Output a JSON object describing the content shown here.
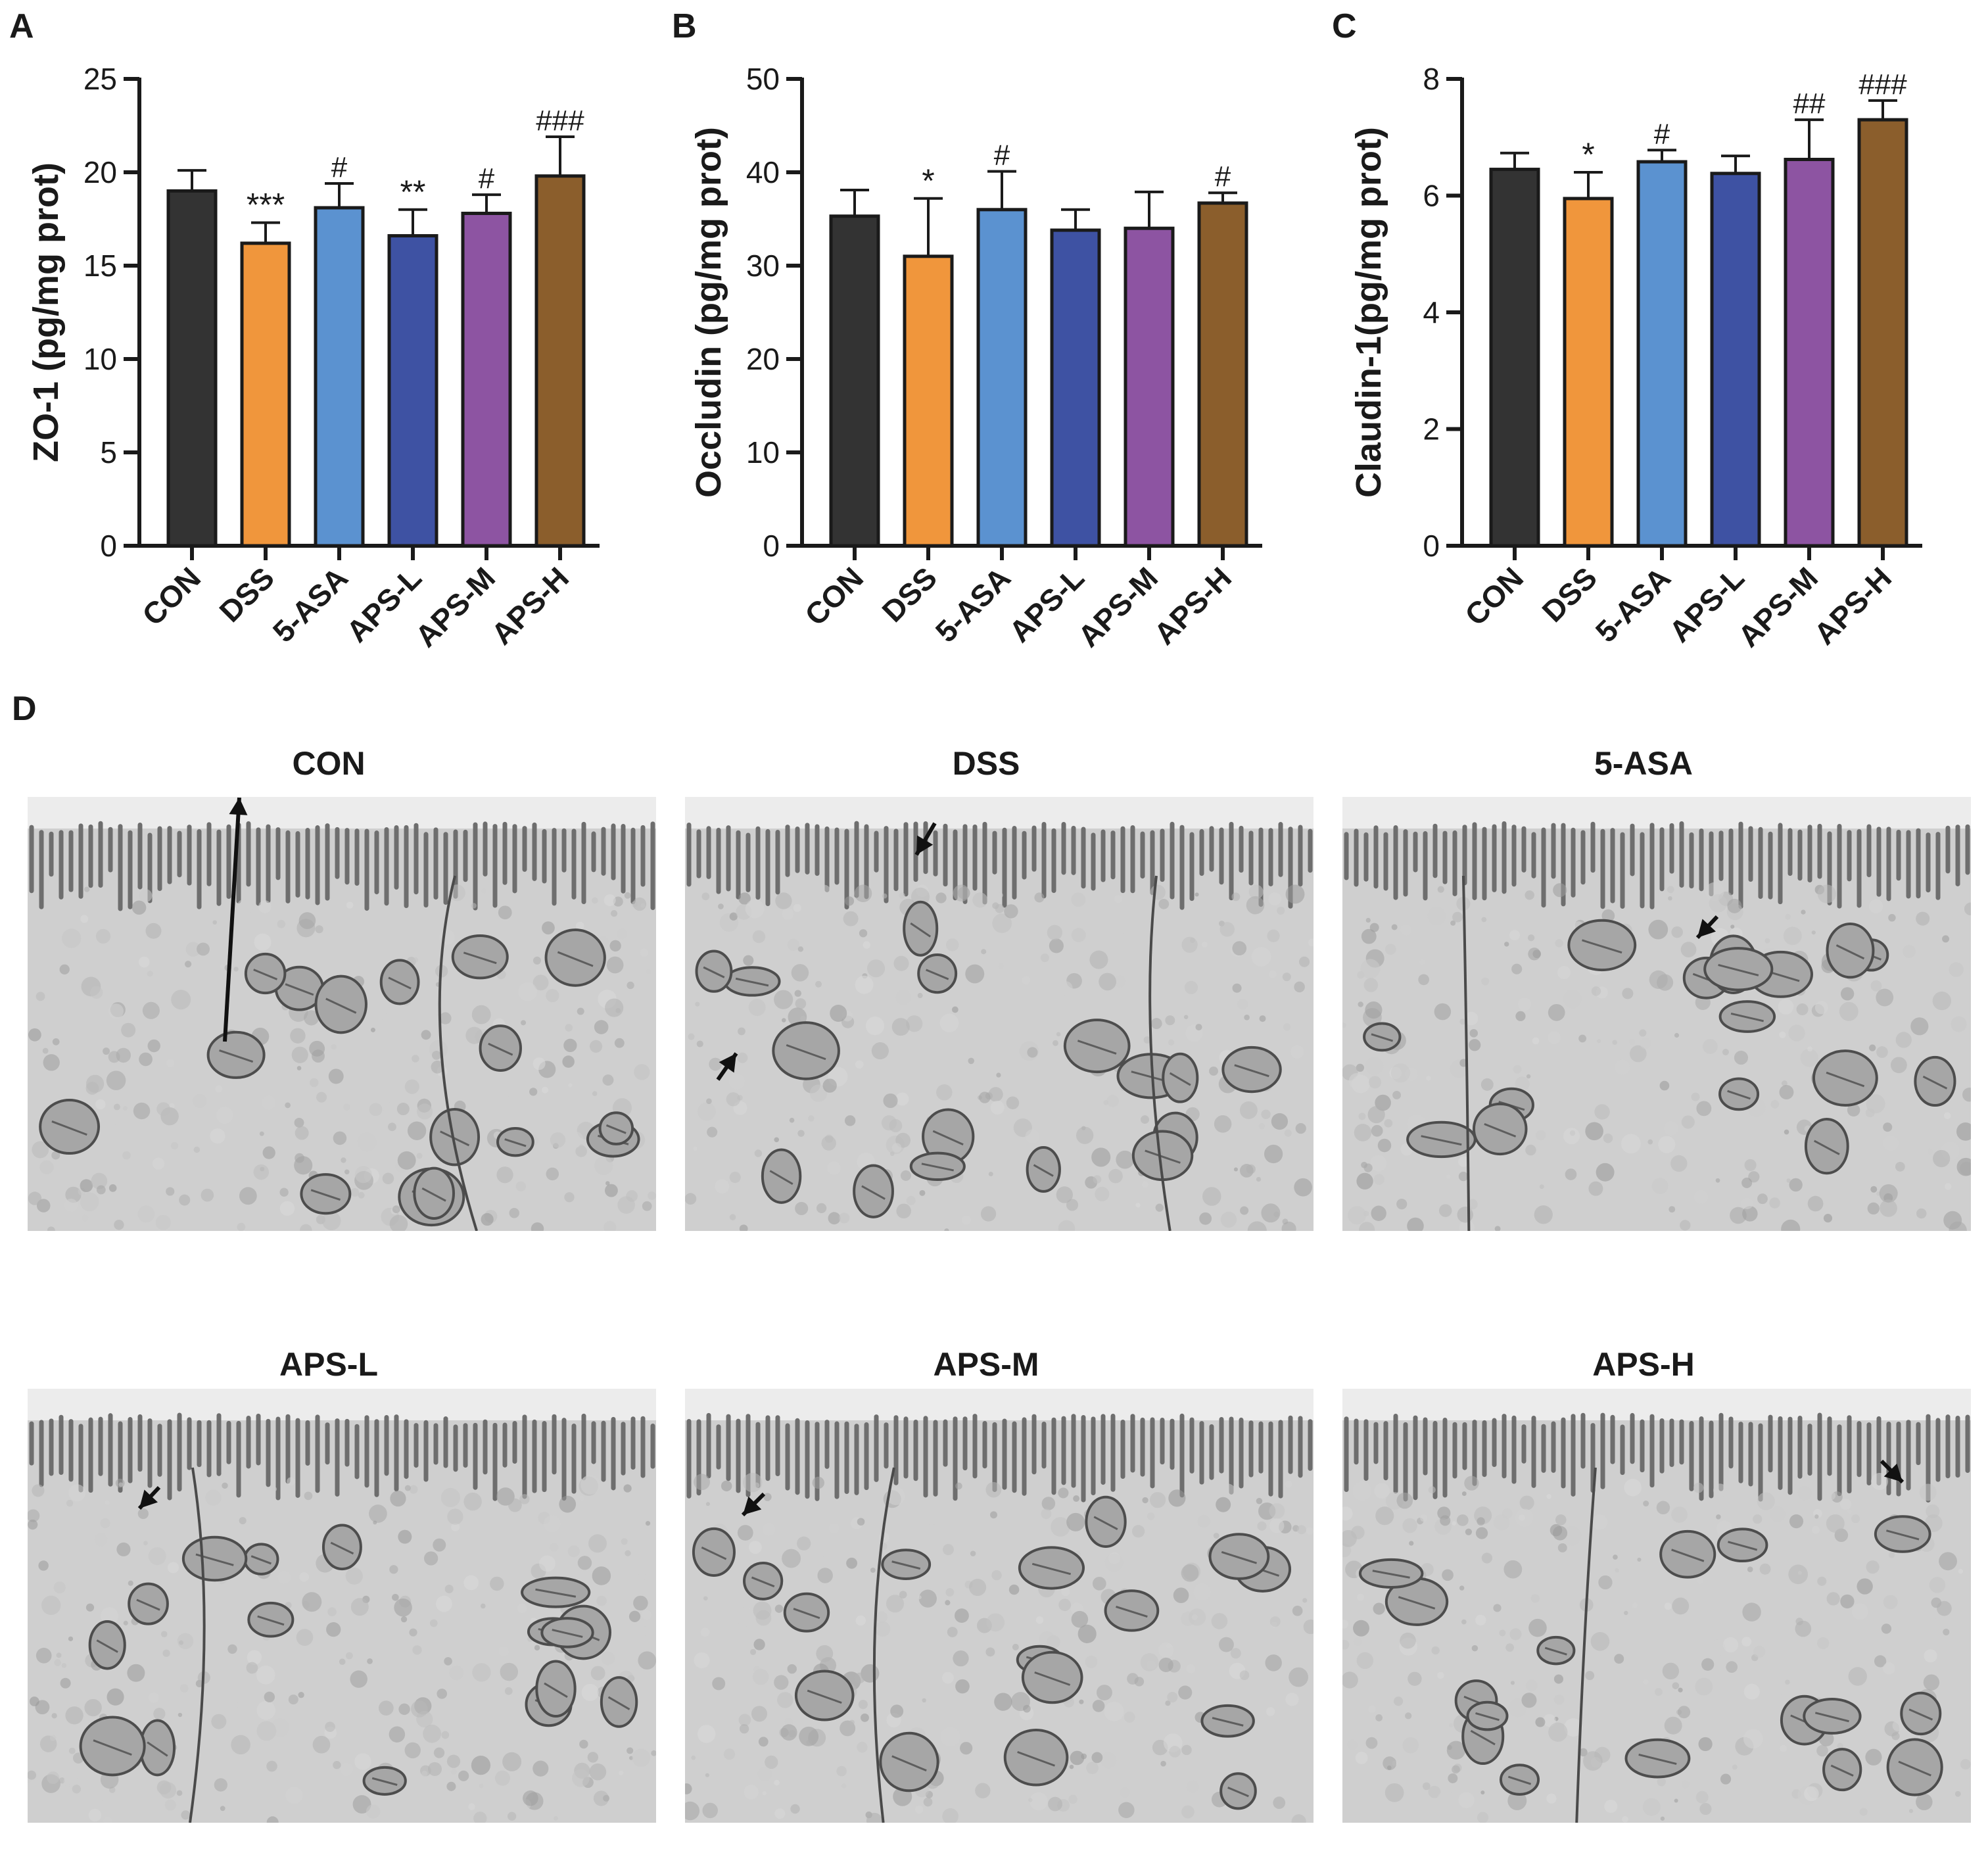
{
  "panel_letters": [
    "A",
    "B",
    "C",
    "D"
  ],
  "chart_data": [
    {
      "type": "bar",
      "panel": "A",
      "categories": [
        "CON",
        "DSS",
        "5-ASA",
        "APS-L",
        "APS-M",
        "APS-H"
      ],
      "values": [
        19.0,
        16.2,
        18.1,
        16.6,
        17.8,
        19.8
      ],
      "errors": [
        1.1,
        1.1,
        1.3,
        1.4,
        1.0,
        2.1
      ],
      "annotations": [
        "",
        "***",
        "#",
        "**",
        "#",
        "###"
      ],
      "ylabel": "ZO-1 (pg/mg prot)",
      "ylim": [
        0,
        25
      ],
      "yticks": [
        "0",
        "5",
        "10",
        "15",
        "20",
        "25"
      ],
      "colors": [
        "#333333",
        "#f0963c",
        "#5b92d0",
        "#3e52a3",
        "#8d54a2",
        "#8b5e2c"
      ]
    },
    {
      "type": "bar",
      "panel": "B",
      "categories": [
        "CON",
        "DSS",
        "5-ASA",
        "APS-L",
        "APS-M",
        "APS-H"
      ],
      "values": [
        35.3,
        31.0,
        36.0,
        33.8,
        34.0,
        36.7
      ],
      "errors": [
        2.8,
        6.2,
        4.1,
        2.2,
        3.9,
        1.1
      ],
      "annotations": [
        "",
        "*",
        "#",
        "",
        "",
        "#"
      ],
      "ylabel": "Occludin (pg/mg prot)",
      "ylim": [
        0,
        50
      ],
      "yticks": [
        "0",
        "10",
        "20",
        "30",
        "40",
        "50"
      ],
      "colors": [
        "#333333",
        "#f0963c",
        "#5b92d0",
        "#3e52a3",
        "#8d54a2",
        "#8b5e2c"
      ]
    },
    {
      "type": "bar",
      "panel": "C",
      "categories": [
        "CON",
        "DSS",
        "5-ASA",
        "APS-L",
        "APS-M",
        "APS-H"
      ],
      "values": [
        6.45,
        5.95,
        6.58,
        6.38,
        6.62,
        7.3
      ],
      "errors": [
        0.28,
        0.45,
        0.2,
        0.3,
        0.68,
        0.33
      ],
      "annotations": [
        "",
        "*",
        "#",
        "",
        "##",
        "###"
      ],
      "ylabel": "Claudin-1(pg/mg prot)",
      "ylim": [
        0,
        8
      ],
      "yticks": [
        "0",
        "2",
        "4",
        "6",
        "8"
      ],
      "colors": [
        "#333333",
        "#f0963c",
        "#5b92d0",
        "#3e52a3",
        "#8d54a2",
        "#8b5e2c"
      ]
    }
  ],
  "em_panels": [
    {
      "title": "CON"
    },
    {
      "title": "DSS"
    },
    {
      "title": "5-ASA"
    },
    {
      "title": "APS-L"
    },
    {
      "title": "APS-M"
    },
    {
      "title": "APS-H"
    }
  ]
}
